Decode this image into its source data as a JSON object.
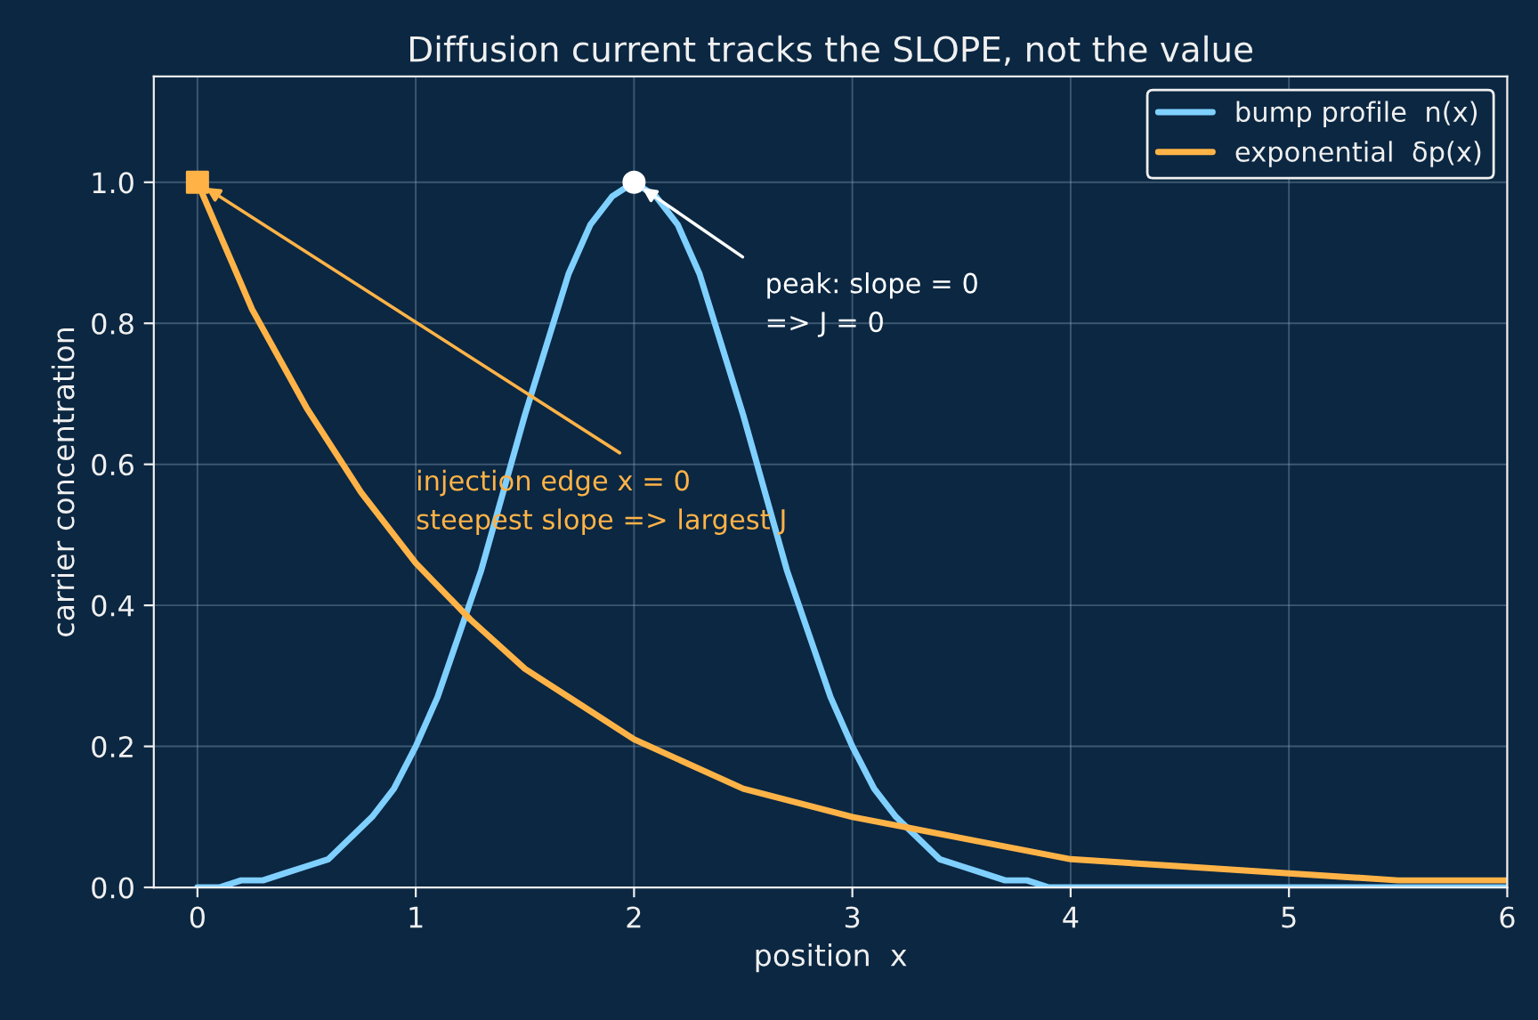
{
  "chart_data": {
    "type": "line",
    "title": "Diffusion current tracks the SLOPE, not the value",
    "xlabel": "position  x",
    "ylabel": "carrier concentration",
    "series": [
      {
        "name": "bump profile  n(x)",
        "color": "#7fd0ff",
        "x": [
          0,
          0.1,
          0.2,
          0.3,
          0.4,
          0.5,
          0.6,
          0.7,
          0.8,
          0.9,
          1.0,
          1.1,
          1.2,
          1.3,
          1.4,
          1.5,
          1.6,
          1.7,
          1.8,
          1.9,
          2.0,
          2.1,
          2.2,
          2.3,
          2.4,
          2.5,
          2.6,
          2.7,
          2.8,
          2.9,
          3.0,
          3.1,
          3.2,
          3.3,
          3.4,
          3.5,
          3.6,
          3.7,
          3.8,
          3.9,
          4.0,
          4.5,
          5.0,
          6.0
        ],
        "values": [
          0.0,
          0.0,
          0.01,
          0.01,
          0.02,
          0.03,
          0.04,
          0.07,
          0.1,
          0.14,
          0.2,
          0.27,
          0.36,
          0.45,
          0.56,
          0.67,
          0.77,
          0.87,
          0.94,
          0.98,
          1.0,
          0.98,
          0.94,
          0.87,
          0.77,
          0.67,
          0.56,
          0.45,
          0.36,
          0.27,
          0.2,
          0.14,
          0.1,
          0.07,
          0.04,
          0.03,
          0.02,
          0.01,
          0.01,
          0.0,
          0.0,
          0.0,
          0.0,
          0.0
        ]
      },
      {
        "name": "exponential  δp(x)",
        "color": "#ffb347",
        "x": [
          0,
          0.25,
          0.5,
          0.75,
          1.0,
          1.25,
          1.5,
          1.75,
          2.0,
          2.5,
          3.0,
          3.5,
          4.0,
          4.5,
          5.0,
          5.5,
          6.0
        ],
        "values": [
          1.0,
          0.82,
          0.68,
          0.56,
          0.46,
          0.38,
          0.31,
          0.26,
          0.21,
          0.14,
          0.1,
          0.07,
          0.04,
          0.03,
          0.02,
          0.01,
          0.01
        ]
      },
      {
        "type": "scatter",
        "marker": "square",
        "color": "#ffb347",
        "x": [
          0
        ],
        "values": [
          1.0
        ]
      },
      {
        "type": "scatter",
        "marker": "circle",
        "color": "#ffffff",
        "x": [
          2
        ],
        "values": [
          1.0
        ]
      }
    ],
    "annotations": [
      {
        "text": "injection edge x = 0\nsteepest slope => largest J",
        "x": 0,
        "y": 1.0
      },
      {
        "text": "peak: slope = 0\n=> J = 0",
        "x": 2,
        "y": 1.0
      }
    ],
    "xlim": [
      -0.2,
      6
    ],
    "ylim": [
      0,
      1.15
    ],
    "xticks": [
      0,
      1,
      2,
      3,
      4,
      5,
      6
    ],
    "yticks": [
      {
        "value": 0,
        "label": "0.0"
      },
      0.2,
      0.4,
      0.6,
      0.8,
      {
        "value": 1,
        "label": "1.0"
      }
    ],
    "grid": true,
    "legend": "top right"
  }
}
